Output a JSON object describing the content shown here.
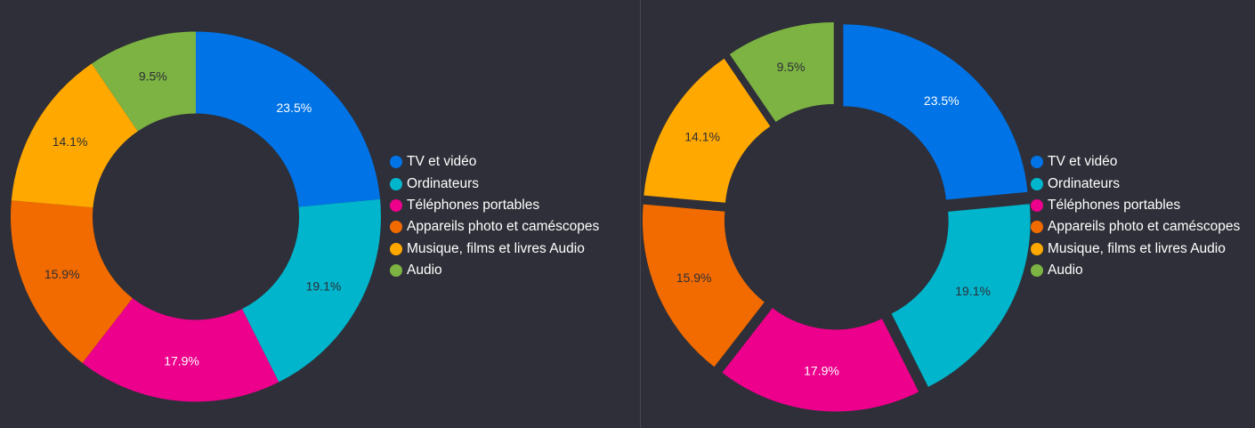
{
  "chart_data": [
    {
      "type": "donut",
      "categories": [
        "TV et vidéo",
        "Ordinateurs",
        "Téléphones portables",
        "Appareils photo et caméscopes",
        "Musique, films et livres Audio",
        "Audio"
      ],
      "values": [
        23.5,
        19.1,
        17.9,
        15.9,
        14.1,
        9.5
      ],
      "labels": [
        "23.5%",
        "19.1%",
        "17.9%",
        "15.9%",
        "14.1%",
        "9.5%"
      ],
      "colors": [
        "#0073e6",
        "#00b5cc",
        "#ec008c",
        "#f26b00",
        "#ffa800",
        "#7cb342"
      ],
      "label_colors": [
        "#ffffff",
        "#2e2f38",
        "#ffffff",
        "#2e2f38",
        "#2e2f38",
        "#2e2f38"
      ],
      "exploded": false,
      "legend": "right"
    },
    {
      "type": "donut",
      "categories": [
        "TV et vidéo",
        "Ordinateurs",
        "Téléphones portables",
        "Appareils photo et caméscopes",
        "Musique, films et livres Audio",
        "Audio"
      ],
      "values": [
        23.5,
        19.1,
        17.9,
        15.9,
        14.1,
        9.5
      ],
      "labels": [
        "23.5%",
        "19.1%",
        "17.9%",
        "15.9%",
        "14.1%",
        "9.5%"
      ],
      "colors": [
        "#0073e6",
        "#00b5cc",
        "#ec008c",
        "#f26b00",
        "#ffa800",
        "#7cb342"
      ],
      "label_colors": [
        "#ffffff",
        "#2e2f38",
        "#ffffff",
        "#2e2f38",
        "#2e2f38",
        "#2e2f38"
      ],
      "exploded": true,
      "legend": "right"
    }
  ]
}
